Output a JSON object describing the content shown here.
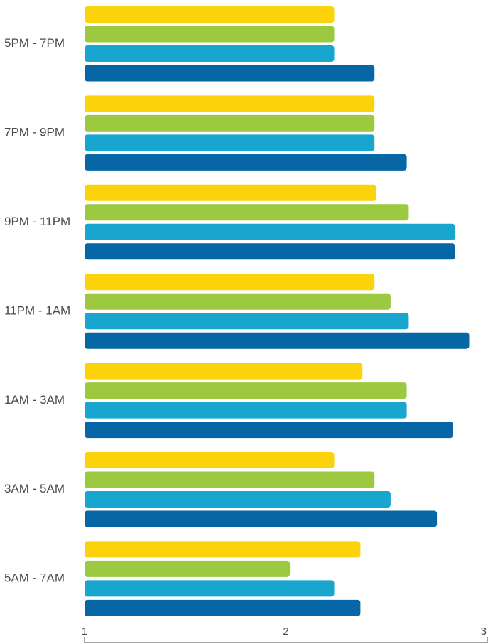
{
  "chart_data": {
    "type": "bar",
    "orientation": "horizontal",
    "categories": [
      "5PM - 7PM",
      "7PM - 9PM",
      "9PM - 11PM",
      "11PM - 1AM",
      "1AM - 3AM",
      "3AM - 5AM",
      "5AM - 7AM"
    ],
    "series": [
      {
        "color": "#fcd20a",
        "values": [
          2.24,
          2.44,
          2.45,
          2.44,
          2.38,
          2.24,
          2.37
        ]
      },
      {
        "color": "#9cc93f",
        "values": [
          2.24,
          2.44,
          2.61,
          2.52,
          2.6,
          2.44,
          2.02
        ]
      },
      {
        "color": "#18a6cf",
        "values": [
          2.24,
          2.44,
          2.84,
          2.61,
          2.6,
          2.52,
          2.24
        ]
      },
      {
        "color": "#0666a6",
        "values": [
          2.44,
          2.6,
          2.84,
          2.91,
          2.83,
          2.75,
          2.37
        ]
      }
    ],
    "xlim": [
      1,
      3
    ],
    "xticks": [
      "1",
      "2",
      "3"
    ],
    "title": "",
    "xlabel": "",
    "ylabel": "",
    "grid": false,
    "legend": "none"
  }
}
